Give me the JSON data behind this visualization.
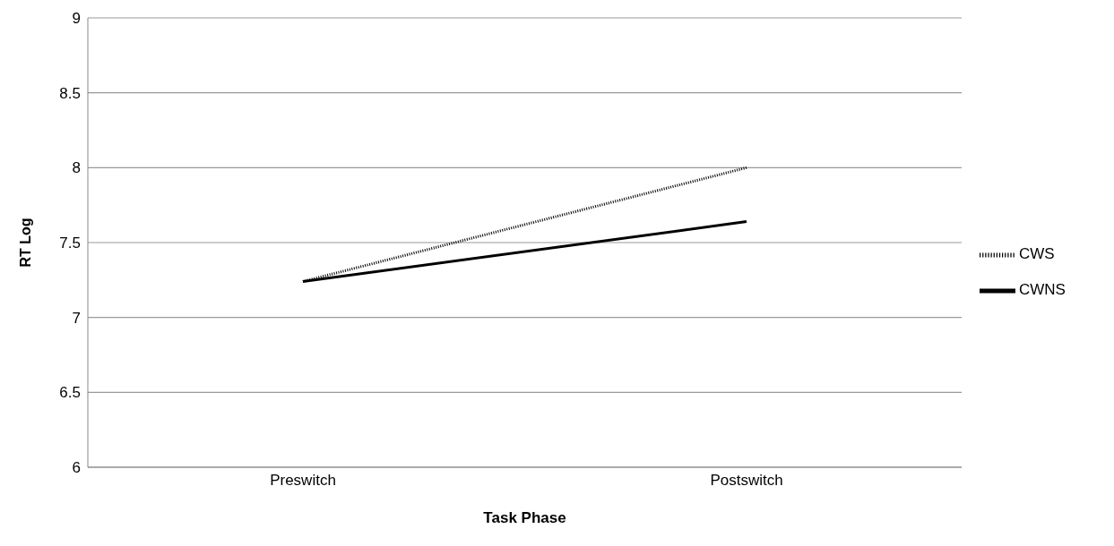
{
  "chart_data": {
    "type": "line",
    "xlabel": "Task Phase",
    "ylabel": "RT Log",
    "categories": [
      "Preswitch",
      "Postswitch"
    ],
    "series": [
      {
        "name": "CWS",
        "color": "#000000",
        "values": [
          7.24,
          8.0
        ],
        "line_style": "dotted"
      },
      {
        "name": "CWNS",
        "color": "#000000",
        "values": [
          7.24,
          7.64
        ],
        "line_style": "solid"
      }
    ],
    "ylim": [
      6,
      9
    ],
    "yticks": [
      6,
      6.5,
      7,
      7.5,
      8,
      8.5,
      9
    ],
    "grid": "y",
    "legend": "right",
    "marker": "none"
  }
}
